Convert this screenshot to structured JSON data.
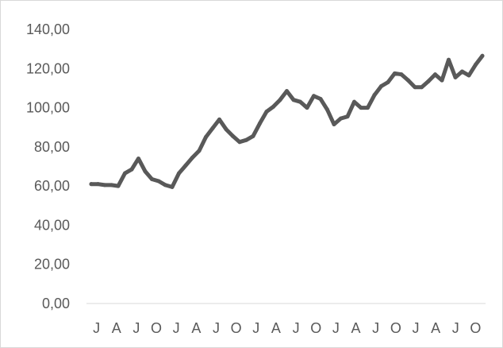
{
  "chart_data": {
    "type": "line",
    "title": "",
    "xlabel": "",
    "ylabel": "",
    "ylim": [
      0,
      140
    ],
    "y_ticks": [
      "0,00",
      "20,00",
      "40,00",
      "60,00",
      "80,00",
      "100,00",
      "120,00",
      "140,00"
    ],
    "x_tick_labels": [
      "J",
      "A",
      "J",
      "O",
      "J",
      "A",
      "J",
      "O",
      "J",
      "A",
      "J",
      "O",
      "J",
      "A",
      "J",
      "O",
      "J",
      "A",
      "J",
      "O"
    ],
    "grid": false,
    "legend": "none",
    "series": [
      {
        "color": "#595959",
        "values": [
          61,
          61,
          60.5,
          60.5,
          60,
          66.5,
          68.5,
          74,
          67.5,
          63.5,
          62.5,
          60.5,
          59.5,
          66.5,
          70.5,
          74.5,
          78,
          85,
          89.5,
          94,
          89,
          85.5,
          82.5,
          83.5,
          85.5,
          92,
          98,
          100.5,
          104,
          108.5,
          104,
          103,
          100,
          106,
          104.5,
          99,
          91.5,
          94.5,
          95.5,
          103,
          100,
          100,
          106.5,
          111,
          113,
          117.5,
          117,
          114,
          110.5,
          110.5,
          113.5,
          117,
          114,
          124.5,
          115.5,
          118.5,
          116.5,
          122,
          126.5
        ]
      }
    ]
  }
}
